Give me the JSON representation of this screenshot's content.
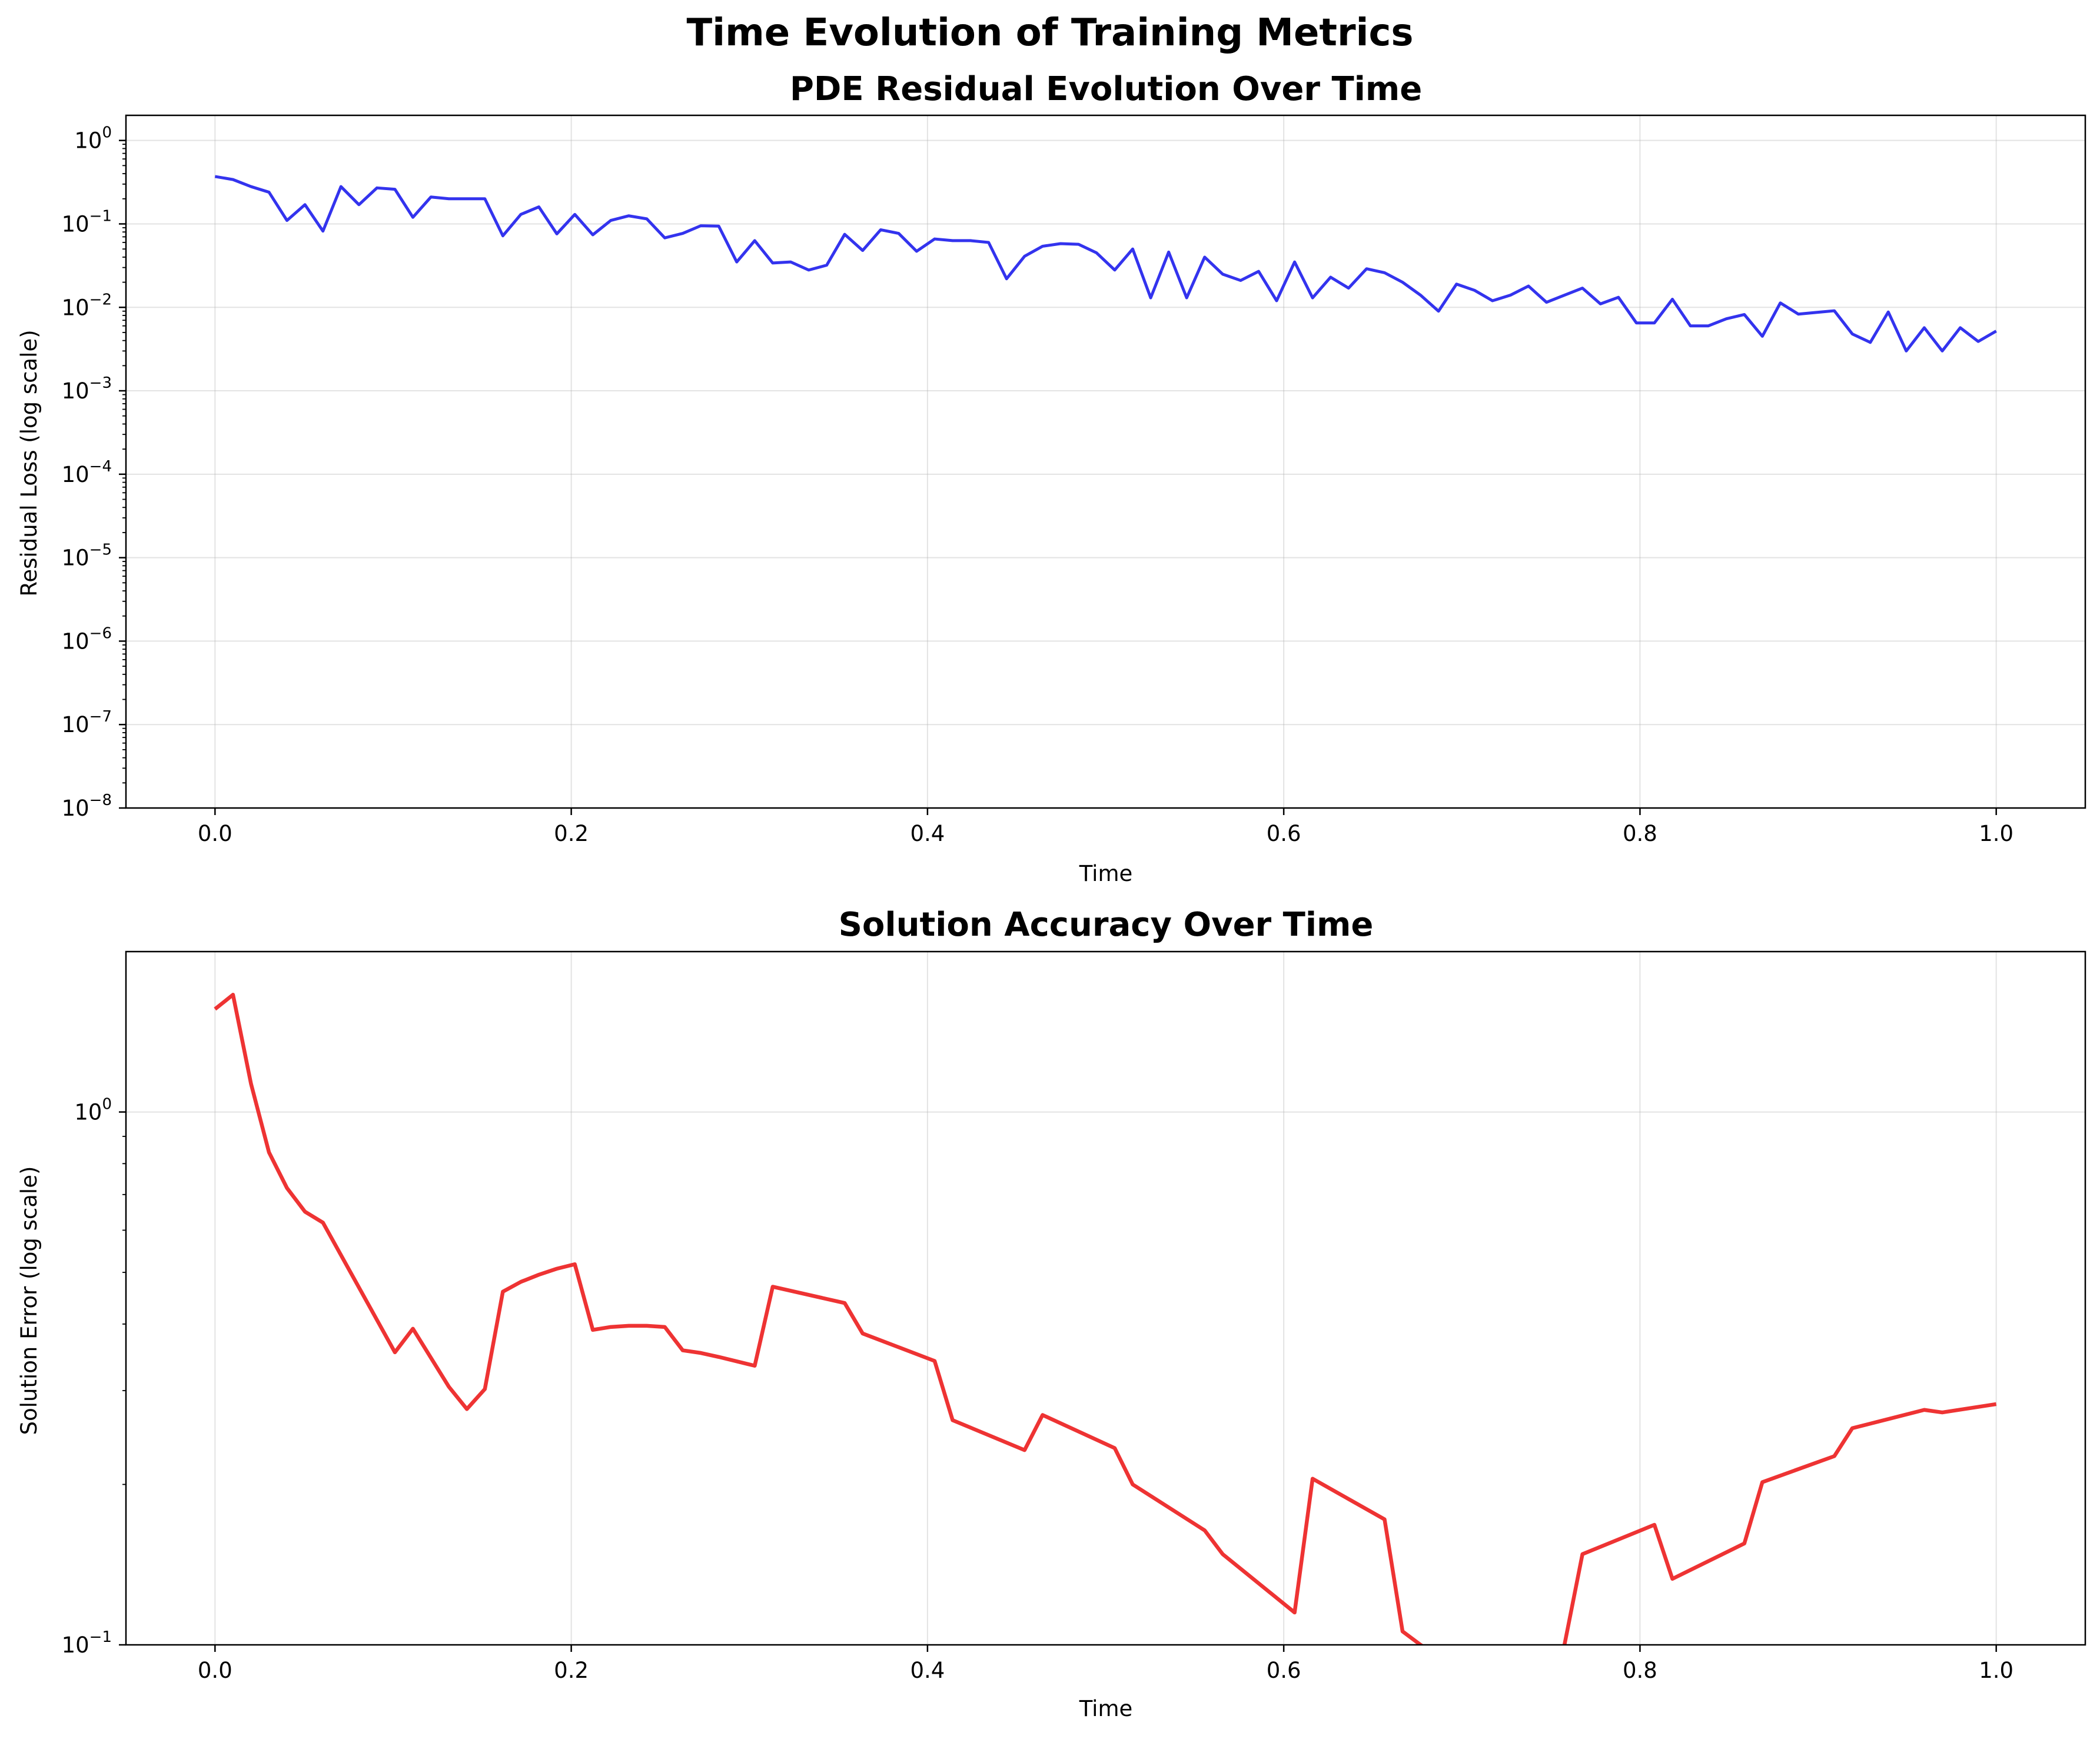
{
  "figure": {
    "suptitle": "Time Evolution of Training Metrics"
  },
  "chart_data": [
    {
      "type": "line",
      "title": "PDE Residual Evolution Over Time",
      "xlabel": "Time",
      "ylabel": "Residual Loss (log scale)",
      "xlim": [
        -0.05,
        1.05
      ],
      "ylim": [
        1e-08,
        2.0
      ],
      "yscale": "log",
      "grid": true,
      "color": "#3333ee",
      "xticks": [
        0.0,
        0.2,
        0.4,
        0.6,
        0.8,
        1.0
      ],
      "xtick_labels": [
        "0.0",
        "0.2",
        "0.4",
        "0.6",
        "0.8",
        "1.0"
      ],
      "yticks": [
        1e-08,
        1e-07,
        1e-06,
        1e-05,
        0.0001,
        0.001,
        0.01,
        0.1,
        1
      ],
      "ytick_labels": [
        {
          "base": "10",
          "exp": "−8"
        },
        {
          "base": "10",
          "exp": "−7"
        },
        {
          "base": "10",
          "exp": "−6"
        },
        {
          "base": "10",
          "exp": "−5"
        },
        {
          "base": "10",
          "exp": "−4"
        },
        {
          "base": "10",
          "exp": "−3"
        },
        {
          "base": "10",
          "exp": "−2"
        },
        {
          "base": "10",
          "exp": "−1"
        },
        {
          "base": "10",
          "exp": "0"
        }
      ],
      "series": [
        {
          "x": [
            0.0,
            0.0101,
            0.0202,
            0.0303,
            0.0404,
            0.0505,
            0.0606,
            0.0707,
            0.0808,
            0.0909,
            0.101,
            0.1111,
            0.1212,
            0.1313,
            0.1414,
            0.1515,
            0.1616,
            0.1717,
            0.1818,
            0.1919,
            0.202,
            0.2121,
            0.2222,
            0.2323,
            0.2424,
            0.2525,
            0.2626,
            0.2727,
            0.2828,
            0.2929,
            0.303,
            0.3131,
            0.3232,
            0.3333,
            0.3434,
            0.3535,
            0.3636,
            0.3737,
            0.3838,
            0.3939,
            0.404,
            0.4141,
            0.4242,
            0.4343,
            0.4444,
            0.4545,
            0.4646,
            0.4747,
            0.4848,
            0.4949,
            0.5051,
            0.5152,
            0.5253,
            0.5354,
            0.5455,
            0.5556,
            0.5657,
            0.5758,
            0.5859,
            0.596,
            0.6061,
            0.6162,
            0.6263,
            0.6364,
            0.6465,
            0.6566,
            0.6667,
            0.6768,
            0.6869,
            0.697,
            0.7071,
            0.7172,
            0.7273,
            0.7374,
            0.7475,
            0.7576,
            0.7677,
            0.7778,
            0.7879,
            0.798,
            0.8081,
            0.8182,
            0.8283,
            0.8384,
            0.8485,
            0.8586,
            0.8687,
            0.8788,
            0.8889,
            0.899,
            0.9091,
            0.9192,
            0.9293,
            0.9394,
            0.9495,
            0.9596,
            0.9697,
            0.9798,
            0.9899,
            1.0
          ],
          "y": [
            0.37,
            0.34,
            0.28,
            0.24,
            0.11,
            0.17,
            0.082,
            0.28,
            0.17,
            0.27,
            0.26,
            0.12,
            0.21,
            0.2,
            0.2,
            0.2,
            0.072,
            0.13,
            0.16,
            0.076,
            0.13,
            0.074,
            0.11,
            0.125,
            0.115,
            0.068,
            0.077,
            0.095,
            0.094,
            0.035,
            0.063,
            0.034,
            0.035,
            0.028,
            0.032,
            0.075,
            0.048,
            0.085,
            0.077,
            0.047,
            0.066,
            0.063,
            0.063,
            0.06,
            0.022,
            0.041,
            0.054,
            0.058,
            0.057,
            0.045,
            0.028,
            0.05,
            0.013,
            0.046,
            0.013,
            0.04,
            0.025,
            0.021,
            0.027,
            0.012,
            0.035,
            0.013,
            0.023,
            0.017,
            0.029,
            0.026,
            0.02,
            0.014,
            0.009,
            0.019,
            0.016,
            0.012,
            0.014,
            0.018,
            0.0115,
            0.014,
            0.017,
            0.011,
            0.0132,
            0.0065,
            0.0065,
            0.0125,
            0.006,
            0.006,
            0.0073,
            0.0082,
            0.0045,
            0.0113,
            0.0083,
            0.0087,
            0.0091,
            0.0048,
            0.0038,
            0.0088,
            0.003,
            0.0057,
            0.003,
            0.0057,
            0.0039,
            0.0052
          ]
        }
      ]
    },
    {
      "type": "line",
      "title": "Solution Accuracy Over Time",
      "xlabel": "Time",
      "ylabel": "Solution Error (log scale)",
      "xlim": [
        -0.05,
        1.05
      ],
      "ylim": [
        0.1,
        2.0
      ],
      "yscale": "log",
      "grid": true,
      "color": "#ee3333",
      "xticks": [
        0.0,
        0.2,
        0.4,
        0.6,
        0.8,
        1.0
      ],
      "xtick_labels": [
        "0.0",
        "0.2",
        "0.4",
        "0.6",
        "0.8",
        "1.0"
      ],
      "yticks": [
        0.1,
        1
      ],
      "ytick_labels": [
        {
          "base": "10",
          "exp": "−1"
        },
        {
          "base": "10",
          "exp": "0"
        }
      ],
      "series": [
        {
          "x": [
            0.0,
            0.0101,
            0.0202,
            0.0303,
            0.0404,
            0.0505,
            0.0606,
            0.101,
            0.1111,
            0.1313,
            0.1414,
            0.1515,
            0.1616,
            0.1717,
            0.1818,
            0.1919,
            0.202,
            0.2121,
            0.2222,
            0.2323,
            0.2424,
            0.2525,
            0.2626,
            0.2727,
            0.2828,
            0.303,
            0.3131,
            0.3535,
            0.3636,
            0.404,
            0.4141,
            0.4545,
            0.4646,
            0.5051,
            0.5152,
            0.5556,
            0.5657,
            0.6061,
            0.6162,
            0.6566,
            0.6667,
            0.6768,
            0.6869,
            0.697,
            0.7071,
            0.7172,
            0.7273,
            0.7374,
            0.7475,
            0.7576,
            0.7677,
            0.8081,
            0.8182,
            0.8586,
            0.8687,
            0.9091,
            0.9192,
            0.9596,
            0.9697,
            1.0
          ],
          "y": [
            1.56,
            1.66,
            1.13,
            0.84,
            0.72,
            0.65,
            0.62,
            0.354,
            0.392,
            0.305,
            0.277,
            0.302,
            0.46,
            0.48,
            0.495,
            0.508,
            0.518,
            0.39,
            0.395,
            0.397,
            0.397,
            0.395,
            0.357,
            0.353,
            0.347,
            0.334,
            0.47,
            0.438,
            0.384,
            0.341,
            0.264,
            0.232,
            0.27,
            0.234,
            0.2,
            0.164,
            0.148,
            0.115,
            0.205,
            0.172,
            0.106,
            0.1,
            0.095,
            0.092,
            0.09,
            0.088,
            0.087,
            0.087,
            0.09,
            0.1,
            0.148,
            0.168,
            0.133,
            0.155,
            0.202,
            0.226,
            0.255,
            0.276,
            0.273,
            0.283
          ]
        }
      ]
    }
  ]
}
